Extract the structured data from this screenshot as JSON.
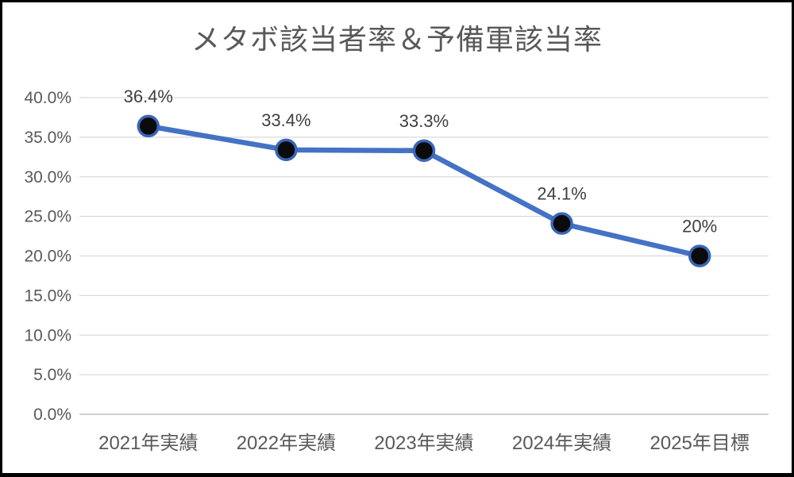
{
  "frame": {
    "background": "#FFFFFF",
    "border_color": "#000000"
  },
  "chart_data": {
    "type": "line",
    "title": "メタボ該当者率＆予備軍該当率",
    "categories": [
      "2021年実績",
      "2022年実績",
      "2023年実績",
      "2024年実績",
      "2025年目標"
    ],
    "values": [
      36.4,
      33.4,
      33.3,
      24.1,
      20
    ],
    "data_labels": [
      "36.4%",
      "33.4%",
      "33.3%",
      "24.1%",
      "20%"
    ],
    "y_ticks": [
      {
        "value": 40,
        "label": "40.0%"
      },
      {
        "value": 35,
        "label": "35.0%"
      },
      {
        "value": 30,
        "label": "30.0%"
      },
      {
        "value": 25,
        "label": "25.0%"
      },
      {
        "value": 20,
        "label": "20.0%"
      },
      {
        "value": 15,
        "label": "15.0%"
      },
      {
        "value": 10,
        "label": "10.0%"
      },
      {
        "value": 5,
        "label": "5.0%"
      },
      {
        "value": 0,
        "label": "0.0%"
      }
    ],
    "ylim": [
      0,
      40
    ],
    "xlabel": "",
    "ylabel": "",
    "grid": true,
    "legend": "none",
    "colors": {
      "line": "#4472C4",
      "marker_fill": "#0B0B0B",
      "marker_border": "#3A66B8",
      "gridline": "#D9D9D9",
      "axis_line": "#BFBFBF",
      "title_text": "#595959",
      "axis_text": "#595959",
      "data_label_text": "#404040"
    }
  }
}
